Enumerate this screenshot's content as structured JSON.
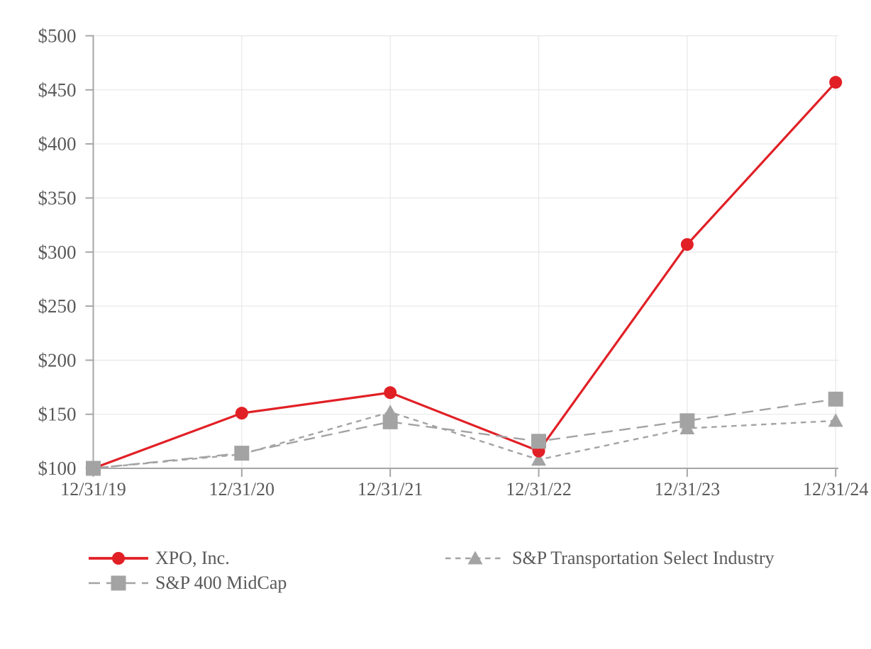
{
  "chart_data": {
    "type": "line",
    "categories": [
      "12/31/19",
      "12/31/20",
      "12/31/21",
      "12/31/22",
      "12/31/23",
      "12/31/24"
    ],
    "series": [
      {
        "name": "XPO, Inc.",
        "values": [
          100,
          151,
          170,
          116,
          307,
          457
        ],
        "color": "#e12026",
        "marker": "circle",
        "line_style": "solid"
      },
      {
        "name": "S&P 400 MidCap",
        "values": [
          100,
          114,
          143,
          125,
          144,
          164
        ],
        "color": "#a3a3a3",
        "marker": "square",
        "line_style": "long-dash"
      },
      {
        "name": "S&P Transportation Select Industry",
        "values": [
          100,
          113,
          152,
          108,
          137,
          144
        ],
        "color": "#a3a3a3",
        "marker": "triangle",
        "line_style": "short-dash"
      }
    ],
    "ylim": [
      100,
      500
    ],
    "yticks": [
      100,
      150,
      200,
      250,
      300,
      350,
      400,
      450,
      500
    ],
    "ytick_labels": [
      "$100",
      "$150",
      "$200",
      "$250",
      "$300",
      "$350",
      "$400",
      "$450",
      "$500"
    ],
    "xlabel": "",
    "ylabel": "",
    "grid": true,
    "legend_position": "bottom",
    "colors": {
      "axis": "#a6a6a6",
      "grid": "#e7e7e7",
      "text": "#595959"
    }
  }
}
